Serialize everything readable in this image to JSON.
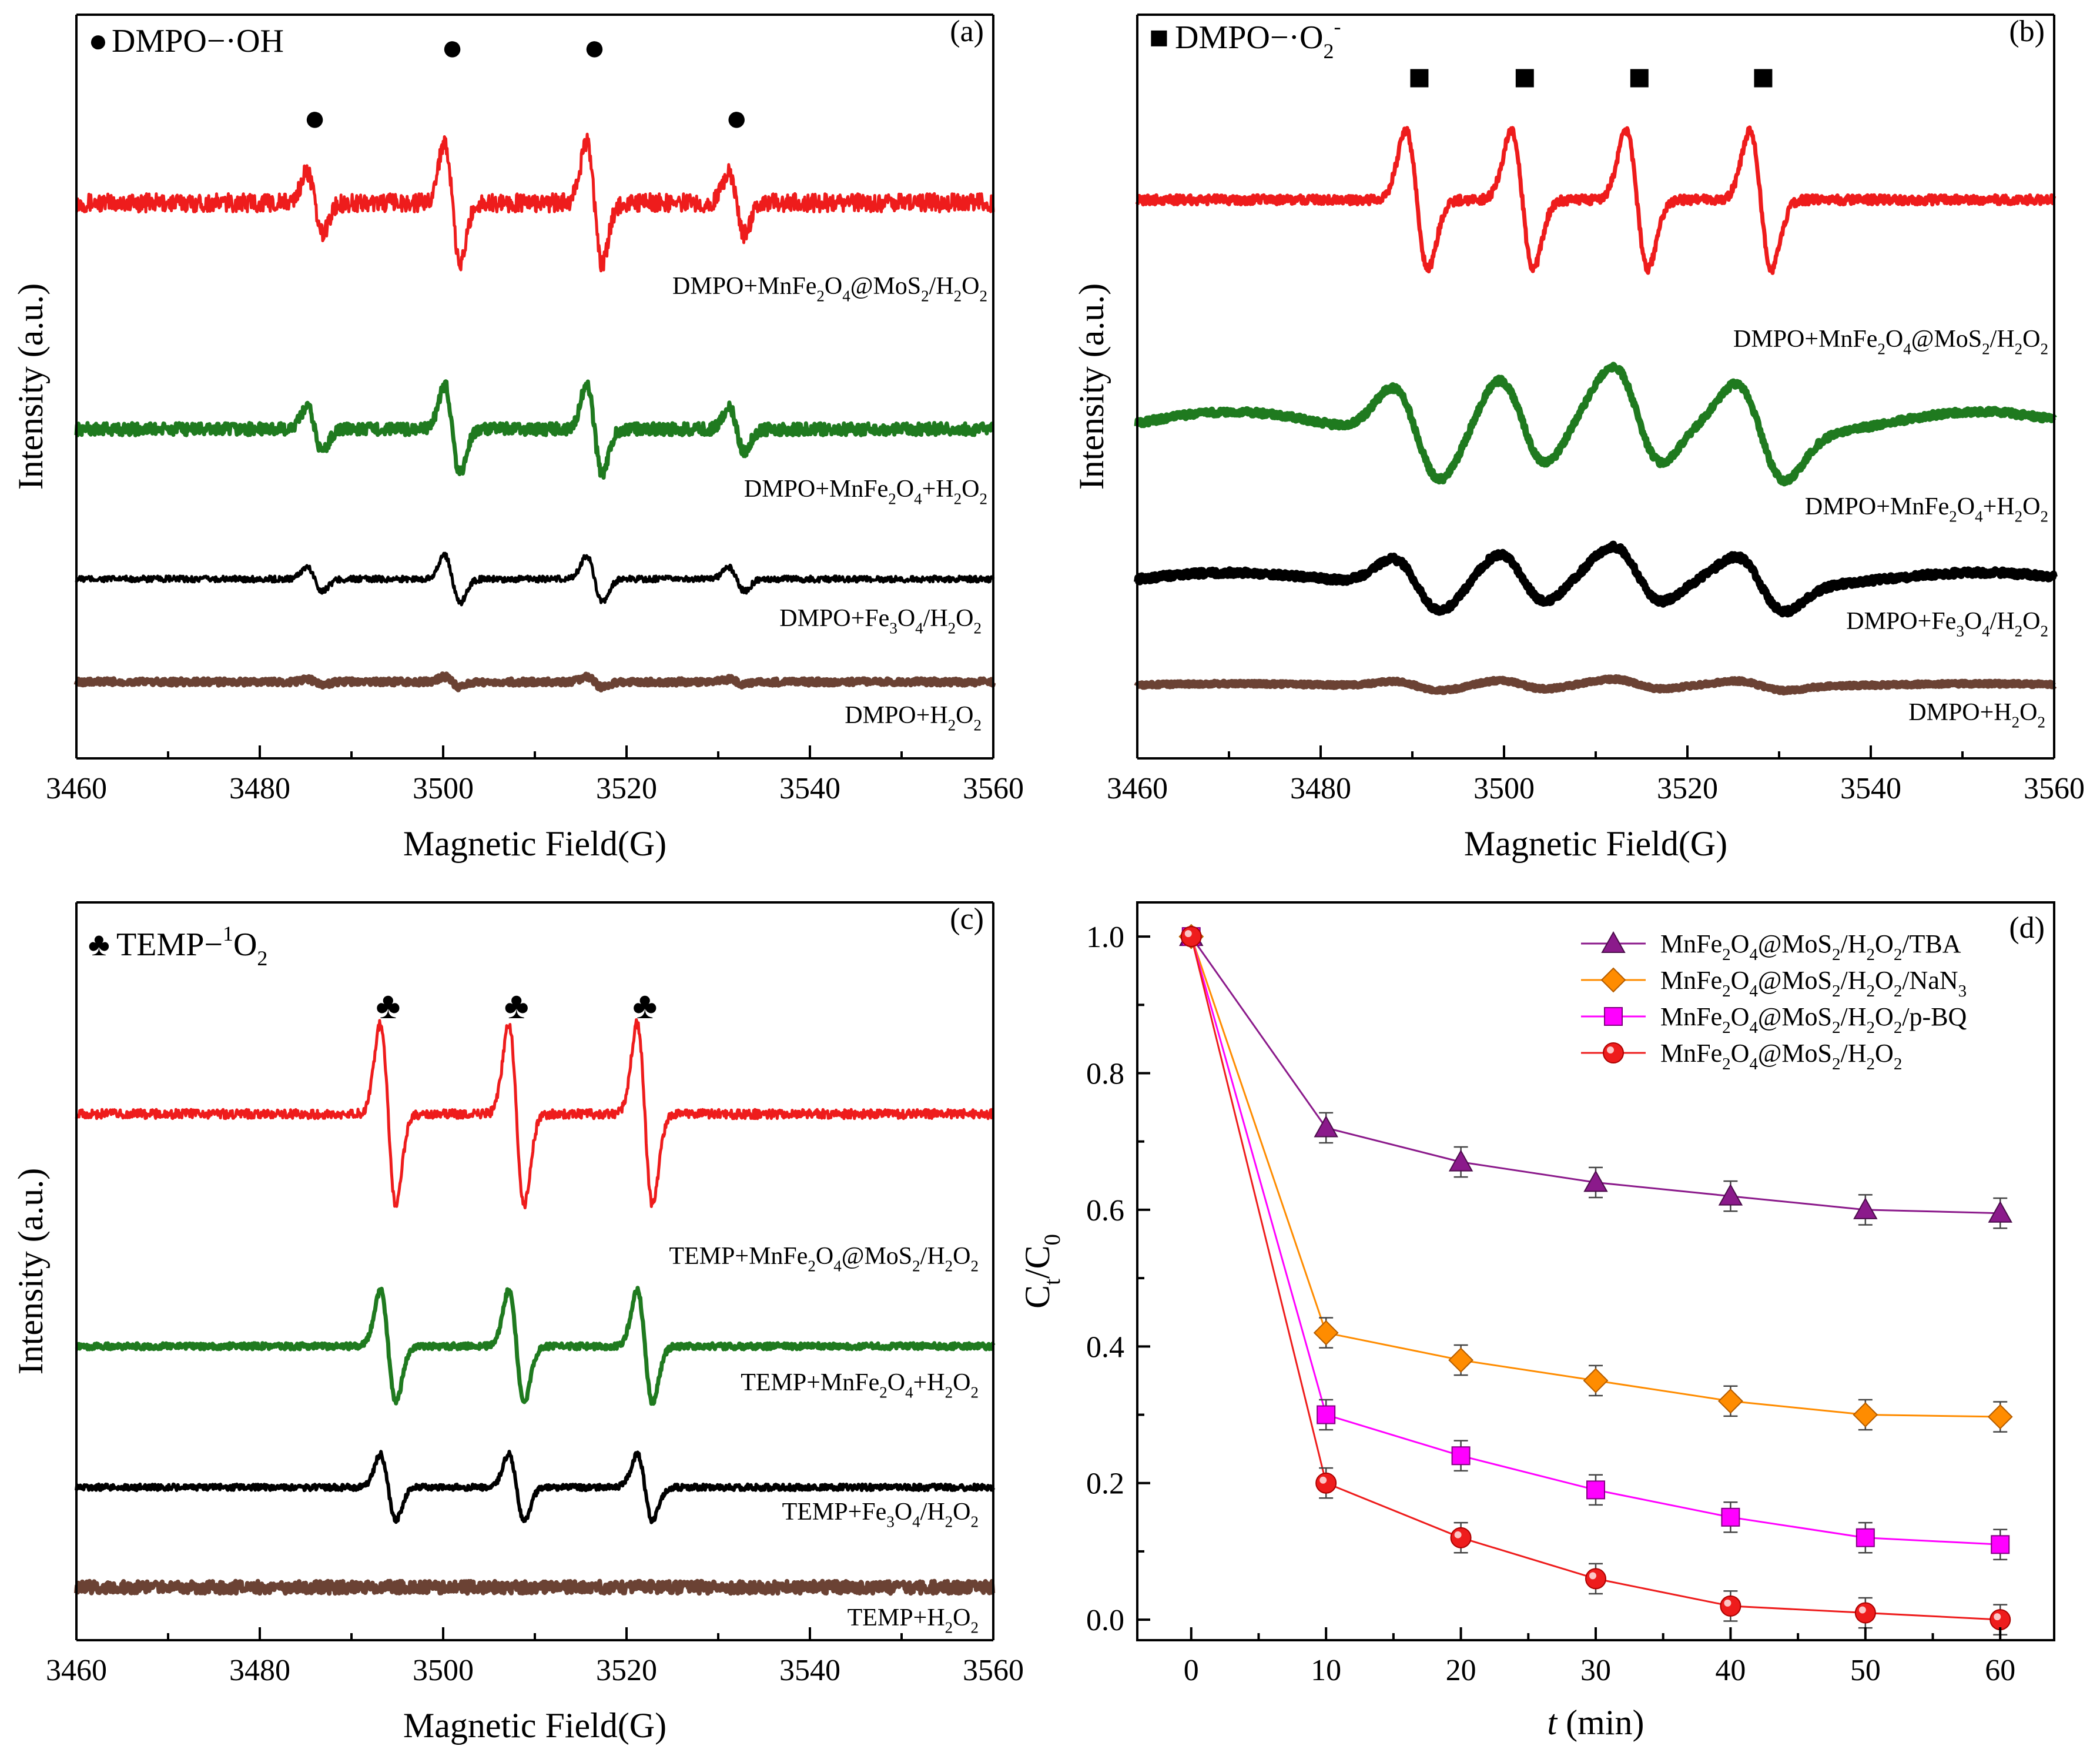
{
  "chart_data": [
    {
      "panel": "a",
      "type": "line",
      "panel_label": "(a)",
      "species_label": "DMPO−·OH",
      "peak_marker": "●",
      "xlabel": "Magnetic Field(G)",
      "ylabel": "Intensity (a.u.)",
      "xlim": [
        3460,
        3560
      ],
      "xticks": [
        3460,
        3480,
        3500,
        3520,
        3540,
        3560
      ],
      "peak_fields": [
        3486,
        3501,
        3516.5,
        3532
      ],
      "peak_ratio": [
        1,
        2,
        2,
        1
      ],
      "peak_width": 0.85,
      "series": [
        {
          "name": "DMPO+MnFe2O4@MoS2/H2O2",
          "label_parts": [
            [
              "DMPO+MnFe",
              ""
            ],
            [
              "2",
              "sub"
            ],
            [
              "O",
              ""
            ],
            [
              "4",
              "sub"
            ],
            [
              "@MoS",
              ""
            ],
            [
              "2",
              "sub"
            ],
            [
              "/H",
              ""
            ],
            [
              "2",
              "sub"
            ],
            [
              "O",
              ""
            ],
            [
              "2",
              "sub"
            ]
          ],
          "color": "#ee1c1c",
          "baseline": 1.0,
          "amplitude": 0.42,
          "noise": 0.012,
          "stroke": 5,
          "shape": "derivative"
        },
        {
          "name": "DMPO+MnFe2O4+H2O2",
          "label_parts": [
            [
              "DMPO+MnFe",
              ""
            ],
            [
              "2",
              "sub"
            ],
            [
              "O",
              ""
            ],
            [
              "4",
              "sub"
            ],
            [
              "+H",
              ""
            ],
            [
              "2",
              "sub"
            ],
            [
              "O",
              ""
            ],
            [
              "2",
              "sub"
            ]
          ],
          "color": "#1f7a1f",
          "baseline": 0.0,
          "amplitude": 0.3,
          "noise": 0.008,
          "stroke": 7,
          "shape": "derivative"
        },
        {
          "name": "DMPO+Fe3O4/H2O2",
          "label_parts": [
            [
              "DMPO+Fe",
              ""
            ],
            [
              "3",
              "sub"
            ],
            [
              "O",
              ""
            ],
            [
              "4",
              "sub"
            ],
            [
              "/H",
              ""
            ],
            [
              "2",
              "sub"
            ],
            [
              "O",
              ""
            ],
            [
              "2",
              "sub"
            ]
          ],
          "color": "#000000",
          "baseline": 0.0,
          "amplitude": 0.16,
          "noise": 0.004,
          "stroke": 5,
          "shape": "derivative"
        },
        {
          "name": "DMPO+H2O2",
          "label_parts": [
            [
              "DMPO+H",
              ""
            ],
            [
              "2",
              "sub"
            ],
            [
              "O",
              ""
            ],
            [
              "2",
              "sub"
            ]
          ],
          "color": "#6b4234",
          "baseline": 0.0,
          "amplitude": 0.035,
          "noise": 0.004,
          "stroke": 9,
          "shape": "derivative"
        }
      ]
    },
    {
      "panel": "b",
      "type": "line",
      "panel_label": "(b)",
      "species_label": "DMPO−·O",
      "species_sub": "2",
      "species_sup": "-",
      "peak_marker": "■",
      "xlabel": "Magnetic Field(G)",
      "ylabel": "Intensity (a.u.)",
      "xlim": [
        3460,
        3560
      ],
      "xticks": [
        3460,
        3480,
        3500,
        3520,
        3540,
        3560
      ],
      "peak_fields": [
        3490.5,
        3502,
        3514.5,
        3528
      ],
      "peak_ratio": [
        1,
        1,
        1,
        1
      ],
      "peak_width": 1.2,
      "series": [
        {
          "name": "DMPO+MnFe2O4@MoS2/H2O2",
          "label_parts": [
            [
              "DMPO+MnFe",
              ""
            ],
            [
              "2",
              "sub"
            ],
            [
              "O",
              ""
            ],
            [
              "4",
              "sub"
            ],
            [
              "@MoS",
              ""
            ],
            [
              "2",
              "sub"
            ],
            [
              "/H",
              ""
            ],
            [
              "2",
              "sub"
            ],
            [
              "O",
              ""
            ],
            [
              "2",
              "sub"
            ]
          ],
          "color": "#ee1c1c",
          "baseline": 0.0,
          "amplitude": 0.45,
          "noise": 0.006,
          "stroke": 7,
          "shape": "derivative"
        },
        {
          "name": "DMPO+MnFe2O4+H2O2",
          "label_parts": [
            [
              "DMPO+MnFe",
              ""
            ],
            [
              "2",
              "sub"
            ],
            [
              "O",
              ""
            ],
            [
              "4",
              "sub"
            ],
            [
              "+H",
              ""
            ],
            [
              "2",
              "sub"
            ],
            [
              "O",
              ""
            ],
            [
              "2",
              "sub"
            ]
          ],
          "color": "#1f7a1f",
          "baseline": 0.0,
          "amplitude": 0.3,
          "noise": 0.004,
          "stroke": 11,
          "shape": "broad"
        },
        {
          "name": "DMPO+Fe3O4/H2O2",
          "label_parts": [
            [
              "DMPO+Fe",
              ""
            ],
            [
              "3",
              "sub"
            ],
            [
              "O",
              ""
            ],
            [
              "4",
              "sub"
            ],
            [
              "/H",
              ""
            ],
            [
              "2",
              "sub"
            ],
            [
              "O",
              ""
            ],
            [
              "2",
              "sub"
            ]
          ],
          "color": "#000000",
          "baseline": 0.0,
          "amplitude": 0.17,
          "noise": 0.004,
          "stroke": 12,
          "shape": "broad"
        },
        {
          "name": "DMPO+H2O2",
          "label_parts": [
            [
              "DMPO+H",
              ""
            ],
            [
              "2",
              "sub"
            ],
            [
              "O",
              ""
            ],
            [
              "2",
              "sub"
            ]
          ],
          "color": "#6b4234",
          "baseline": 0.0,
          "amplitude": 0.03,
          "noise": 0.002,
          "stroke": 12,
          "shape": "broad"
        }
      ]
    },
    {
      "panel": "c",
      "type": "line",
      "panel_label": "(c)",
      "species_label": "TEMP−",
      "species_sup": "1",
      "species_tail": "O",
      "species_sub": "2",
      "peak_marker": "♣",
      "xlabel": "Magnetic Field(G)",
      "ylabel": "Intensity (a.u.)",
      "xlim": [
        3460,
        3560
      ],
      "xticks": [
        3460,
        3480,
        3500,
        3520,
        3540,
        3560
      ],
      "peak_fields": [
        3494,
        3508,
        3522
      ],
      "peak_ratio": [
        1,
        1,
        1
      ],
      "peak_width": 0.85,
      "series": [
        {
          "name": "TEMP+MnFe2O4@MoS2/H2O2",
          "label_parts": [
            [
              "TEMP+MnFe",
              ""
            ],
            [
              "2",
              "sub"
            ],
            [
              "O",
              ""
            ],
            [
              "4",
              "sub"
            ],
            [
              "@MoS",
              ""
            ],
            [
              "2",
              "sub"
            ],
            [
              "/H",
              ""
            ],
            [
              "2",
              "sub"
            ],
            [
              "O",
              ""
            ],
            [
              "2",
              "sub"
            ]
          ],
          "color": "#ee1c1c",
          "baseline": 0.0,
          "amplitude": 0.55,
          "noise": 0.006,
          "stroke": 5,
          "shape": "derivative"
        },
        {
          "name": "TEMP+MnFe2O4+H2O2",
          "label_parts": [
            [
              "TEMP+MnFe",
              ""
            ],
            [
              "2",
              "sub"
            ],
            [
              "O",
              ""
            ],
            [
              "4",
              "sub"
            ],
            [
              "+H",
              ""
            ],
            [
              "2",
              "sub"
            ],
            [
              "O",
              ""
            ],
            [
              "2",
              "sub"
            ]
          ],
          "color": "#1f7a1f",
          "baseline": 0.0,
          "amplitude": 0.34,
          "noise": 0.004,
          "stroke": 7,
          "shape": "derivative"
        },
        {
          "name": "TEMP+Fe3O4/H2O2",
          "label_parts": [
            [
              "TEMP+Fe",
              ""
            ],
            [
              "3",
              "sub"
            ],
            [
              "O",
              ""
            ],
            [
              "4",
              "sub"
            ],
            [
              "/H",
              ""
            ],
            [
              "2",
              "sub"
            ],
            [
              "O",
              ""
            ],
            [
              "2",
              "sub"
            ]
          ],
          "color": "#000000",
          "baseline": 0.0,
          "amplitude": 0.2,
          "noise": 0.004,
          "stroke": 6,
          "shape": "derivative"
        },
        {
          "name": "TEMP+H2O2",
          "label_parts": [
            [
              "TEMP+H",
              ""
            ],
            [
              "2",
              "sub"
            ],
            [
              "O",
              ""
            ],
            [
              "2",
              "sub"
            ]
          ],
          "color": "#6b4234",
          "baseline": 0.0,
          "amplitude": 0.0,
          "noise": 0.008,
          "stroke": 8,
          "shape": "derivative"
        }
      ]
    },
    {
      "panel": "d",
      "type": "line",
      "panel_label": "(d)",
      "xlabel_italic": "t",
      "xlabel_rest": " (min)",
      "ylabel_parts": [
        [
          "C",
          ""
        ],
        [
          "t",
          "sub"
        ],
        [
          "/C",
          ""
        ],
        [
          "0",
          "sub"
        ]
      ],
      "xlim": [
        -4,
        64
      ],
      "ylim": [
        -0.03,
        1.05
      ],
      "xticks": [
        0,
        10,
        20,
        30,
        40,
        50,
        60
      ],
      "yticks": [
        "0.0",
        "0.2",
        "0.4",
        "0.6",
        "0.8",
        "1.0"
      ],
      "x": [
        0,
        10,
        20,
        30,
        40,
        50,
        60
      ],
      "legend_position": "top-right",
      "series": [
        {
          "name": "MnFe2O4@MoS2/H2O2/TBA",
          "label_parts": [
            [
              "MnFe",
              ""
            ],
            [
              "2",
              "sub"
            ],
            [
              "O",
              ""
            ],
            [
              "4",
              "sub"
            ],
            [
              "@MoS",
              ""
            ],
            [
              "2",
              "sub"
            ],
            [
              "/H",
              ""
            ],
            [
              "2",
              "sub"
            ],
            [
              "O",
              ""
            ],
            [
              "2",
              "sub"
            ],
            [
              "/TBA",
              ""
            ]
          ],
          "color": "#8b1a8b",
          "marker": "triangle",
          "values": [
            1.0,
            0.72,
            0.67,
            0.64,
            0.62,
            0.6,
            0.595
          ],
          "errors": [
            0.0,
            0.022,
            0.022,
            0.022,
            0.022,
            0.022,
            0.022
          ]
        },
        {
          "name": "MnFe2O4@MoS2/H2O2/NaN3",
          "label_parts": [
            [
              "MnFe",
              ""
            ],
            [
              "2",
              "sub"
            ],
            [
              "O",
              ""
            ],
            [
              "4",
              "sub"
            ],
            [
              "@MoS",
              ""
            ],
            [
              "2",
              "sub"
            ],
            [
              "/H",
              ""
            ],
            [
              "2",
              "sub"
            ],
            [
              "O",
              ""
            ],
            [
              "2",
              "sub"
            ],
            [
              "/NaN",
              ""
            ],
            [
              "3",
              "sub"
            ]
          ],
          "color": "#ff8c00",
          "marker": "diamond",
          "values": [
            1.0,
            0.42,
            0.38,
            0.35,
            0.32,
            0.3,
            0.297
          ],
          "errors": [
            0.0,
            0.022,
            0.022,
            0.022,
            0.022,
            0.022,
            0.022
          ]
        },
        {
          "name": "MnFe2O4@MoS2/H2O2/p-BQ",
          "label_parts": [
            [
              "MnFe",
              ""
            ],
            [
              "2",
              "sub"
            ],
            [
              "O",
              ""
            ],
            [
              "4",
              "sub"
            ],
            [
              "@MoS",
              ""
            ],
            [
              "2",
              "sub"
            ],
            [
              "/H",
              ""
            ],
            [
              "2",
              "sub"
            ],
            [
              "O",
              ""
            ],
            [
              "2",
              "sub"
            ],
            [
              "/p-BQ",
              ""
            ]
          ],
          "color": "#ff00ff",
          "marker": "square",
          "values": [
            1.0,
            0.3,
            0.24,
            0.19,
            0.15,
            0.12,
            0.11
          ],
          "errors": [
            0.0,
            0.022,
            0.022,
            0.022,
            0.022,
            0.022,
            0.022
          ]
        },
        {
          "name": "MnFe2O4@MoS2/H2O2",
          "label_parts": [
            [
              "MnFe",
              ""
            ],
            [
              "2",
              "sub"
            ],
            [
              "O",
              ""
            ],
            [
              "4",
              "sub"
            ],
            [
              "@MoS",
              ""
            ],
            [
              "2",
              "sub"
            ],
            [
              "/H",
              ""
            ],
            [
              "2",
              "sub"
            ],
            [
              "O",
              ""
            ],
            [
              "2",
              "sub"
            ]
          ],
          "color": "#ee1c1c",
          "marker": "circle",
          "values": [
            1.0,
            0.2,
            0.12,
            0.06,
            0.02,
            0.01,
            0.0
          ],
          "errors": [
            0.0,
            0.022,
            0.022,
            0.022,
            0.022,
            0.022,
            0.022
          ]
        }
      ]
    }
  ]
}
